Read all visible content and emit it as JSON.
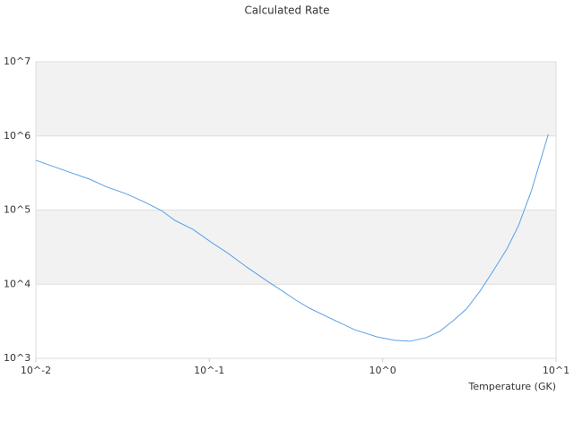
{
  "chart_data": {
    "type": "line",
    "title": "Calculated Rate",
    "x_label": "Temperature (GK)",
    "x": [
      0.01,
      0.0127,
      0.0161,
      0.0204,
      0.0259,
      0.0329,
      0.0418,
      0.053,
      0.0633,
      0.0804,
      0.102,
      0.129,
      0.164,
      0.209,
      0.265,
      0.316,
      0.378,
      0.509,
      0.687,
      0.925,
      1.17,
      1.44,
      1.78,
      2.13,
      2.55,
      3.04,
      3.64,
      4.35,
      5.2,
      6.07,
      7.18,
      9.02
    ],
    "series": [
      {
        "color": "#5aa0e6",
        "values": [
          469000,
          385000,
          317000,
          261000,
          203000,
          167000,
          130000,
          98600,
          72600,
          55000,
          37200,
          25900,
          17100,
          11600,
          8050,
          6100,
          4750,
          3400,
          2440,
          1950,
          1750,
          1700,
          1900,
          2310,
          3220,
          4630,
          8050,
          15300,
          29800,
          61500,
          177000,
          1050000
        ]
      }
    ],
    "xlim": [
      0.01,
      10
    ],
    "ylim": [
      1000,
      10000000
    ],
    "xscale": "log",
    "yscale": "log",
    "xticks": [
      {
        "value": 0.01,
        "label": "10^-2"
      },
      {
        "value": 0.1,
        "label": "10^-1"
      },
      {
        "value": 1,
        "label": "10^0"
      },
      {
        "value": 10,
        "label": "10^1"
      }
    ],
    "yticks": [
      {
        "value": 1000,
        "label": "10^3"
      },
      {
        "value": 10000,
        "label": "10^4"
      },
      {
        "value": 100000,
        "label": "10^5"
      },
      {
        "value": 1000000,
        "label": "10^6"
      },
      {
        "value": 10000000,
        "label": "10^7"
      }
    ],
    "grid": true,
    "band_color": "#f2f2f2"
  }
}
